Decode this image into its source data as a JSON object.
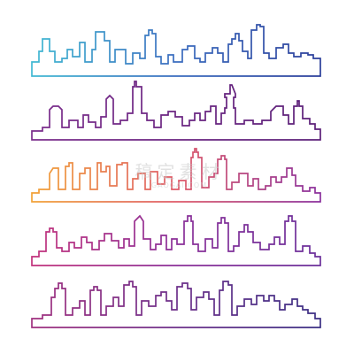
{
  "watermark": {
    "mark": "稿定素材",
    "domain": "GAOGAI.COM"
  },
  "skylines": [
    {
      "name": "skyline-1",
      "colors": [
        "#41b9d3",
        "#3a6cbf",
        "#2b3e9a"
      ],
      "direction": "horizontal"
    },
    {
      "name": "skyline-2",
      "colors": [
        "#7b2d8c",
        "#6a2481",
        "#5b1f78"
      ],
      "direction": "horizontal"
    },
    {
      "name": "skyline-3",
      "colors": [
        "#f2a237",
        "#df5a68",
        "#8a2f9c"
      ],
      "direction": "horizontal"
    },
    {
      "name": "skyline-4",
      "colors": [
        "#c2327c",
        "#8b2f98",
        "#6b2f9a"
      ],
      "direction": "horizontal"
    },
    {
      "name": "skyline-5",
      "colors": [
        "#a0307f",
        "#6d2f8a",
        "#3b2f84"
      ],
      "direction": "horizontal"
    }
  ]
}
